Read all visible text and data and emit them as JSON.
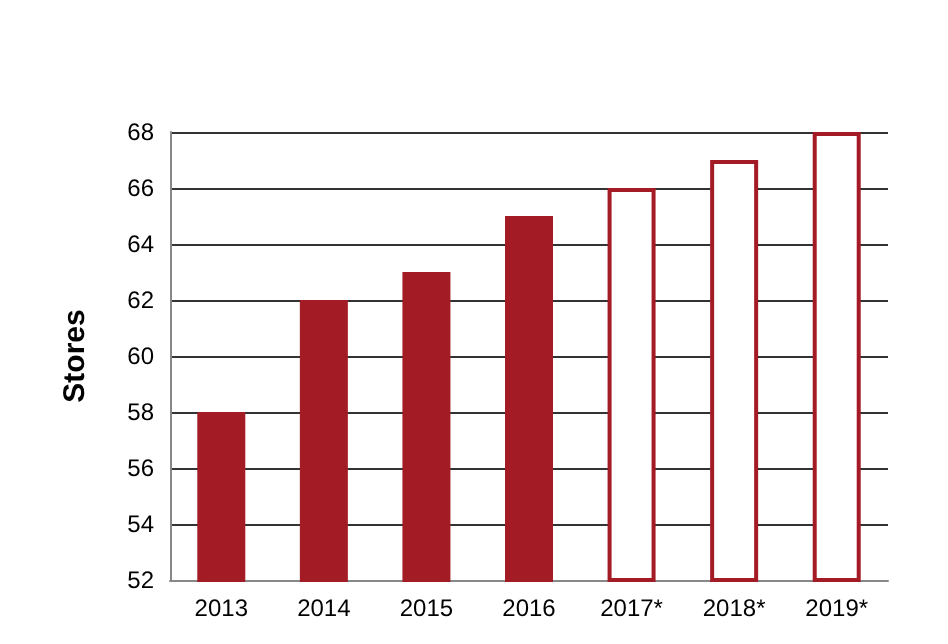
{
  "chart_data": {
    "type": "bar",
    "ylabel": "Stores",
    "categories": [
      "2013",
      "2014",
      "2015",
      "2016",
      "2017*",
      "2018*",
      "2019*"
    ],
    "values": [
      58,
      62,
      63,
      65,
      66,
      67,
      68
    ],
    "colors": [
      "#a31b24",
      "#a31b24",
      "#a31b24",
      "#a31b24",
      "#ffffff",
      "#ffffff",
      "#ffffff"
    ],
    "ylim": [
      52,
      68
    ],
    "yticks": [
      52,
      54,
      56,
      58,
      60,
      62,
      64,
      66,
      68
    ],
    "grid": "y"
  }
}
